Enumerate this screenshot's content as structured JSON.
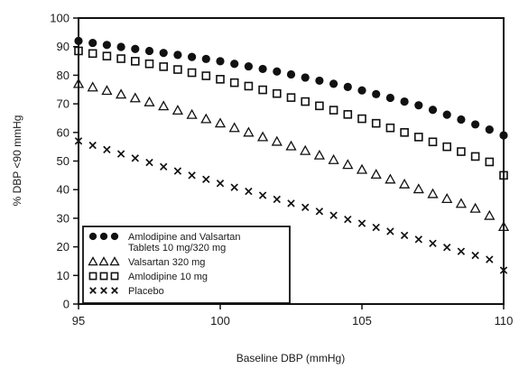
{
  "chart_data": {
    "type": "scatter",
    "xlabel": "Baseline DBP (mmHg)",
    "ylabel": "% DBP <90 mmHg",
    "xlim": [
      95,
      110
    ],
    "ylim": [
      0,
      100
    ],
    "xticks": [
      95,
      100,
      105,
      110
    ],
    "yticks": [
      0,
      10,
      20,
      30,
      40,
      50,
      60,
      70,
      80,
      90,
      100
    ],
    "grid": false,
    "legend_position": "bottom-left",
    "colors": {
      "marker": "#111111",
      "axis": "#111111"
    },
    "x": [
      95,
      95.5,
      96,
      96.5,
      97,
      97.5,
      98,
      98.5,
      99,
      99.5,
      100,
      100.5,
      101,
      101.5,
      102,
      102.5,
      103,
      103.5,
      104,
      104.5,
      105,
      105.5,
      106,
      106.5,
      107,
      107.5,
      108,
      108.5,
      109,
      109.5,
      110
    ],
    "series": [
      {
        "name": "Amlodipine and Valsartan Tablets 10 mg/320 mg",
        "marker": "circle",
        "values": [
          92.0,
          91.3,
          90.6,
          89.9,
          89.2,
          88.5,
          87.8,
          87.1,
          86.4,
          85.7,
          84.9,
          84.0,
          83.1,
          82.2,
          81.3,
          80.3,
          79.2,
          78.1,
          77.0,
          75.9,
          74.7,
          73.4,
          72.1,
          70.8,
          69.5,
          67.9,
          66.2,
          64.5,
          62.8,
          61.0,
          59.0
        ]
      },
      {
        "name": "Valsartan 320 mg",
        "marker": "triangle",
        "values": [
          77.0,
          75.8,
          74.6,
          73.3,
          72.0,
          70.6,
          69.2,
          67.7,
          66.2,
          64.7,
          63.2,
          61.6,
          60.0,
          58.4,
          56.8,
          55.2,
          53.6,
          52.0,
          50.4,
          48.7,
          47.0,
          45.3,
          43.6,
          41.9,
          40.2,
          38.5,
          36.8,
          35.1,
          33.4,
          30.9,
          27.0
        ]
      },
      {
        "name": "Amlodipine 10 mg",
        "marker": "square",
        "values": [
          88.5,
          87.6,
          86.7,
          85.8,
          84.9,
          84.0,
          83.0,
          82.0,
          80.9,
          79.8,
          78.6,
          77.4,
          76.2,
          74.9,
          73.6,
          72.2,
          70.8,
          69.3,
          67.8,
          66.3,
          64.8,
          63.2,
          61.6,
          60.0,
          58.4,
          56.7,
          55.0,
          53.3,
          51.6,
          49.7,
          45.0
        ]
      },
      {
        "name": "Placebo",
        "marker": "x",
        "values": [
          57.0,
          55.5,
          54.0,
          52.5,
          51.0,
          49.5,
          48.0,
          46.5,
          45.0,
          43.6,
          42.2,
          40.8,
          39.4,
          38.0,
          36.6,
          35.2,
          33.8,
          32.4,
          31.0,
          29.6,
          28.2,
          26.8,
          25.4,
          24.0,
          22.6,
          21.2,
          19.8,
          18.4,
          17.0,
          15.6,
          11.8
        ]
      }
    ],
    "legend": [
      {
        "label_lines": [
          "Amlodipine and Valsartan",
          "Tablets 10 mg/320 mg"
        ],
        "marker": "circle"
      },
      {
        "label_lines": [
          "Valsartan 320 mg"
        ],
        "marker": "triangle"
      },
      {
        "label_lines": [
          "Amlodipine 10 mg"
        ],
        "marker": "square"
      },
      {
        "label_lines": [
          "Placebo"
        ],
        "marker": "x"
      }
    ]
  }
}
